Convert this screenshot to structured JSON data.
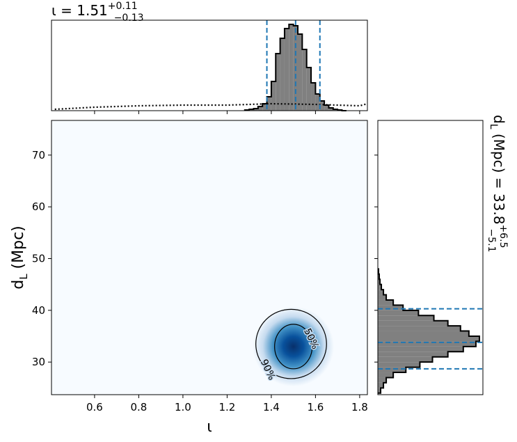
{
  "chart_data": [
    {
      "type": "histogram",
      "orientation": "vertical",
      "title": "ι = 1.51",
      "title_sup": "+0.11",
      "title_sub": "−0.13",
      "bins": [
        1.28,
        1.3,
        1.32,
        1.34,
        1.36,
        1.38,
        1.4,
        1.42,
        1.44,
        1.46,
        1.48,
        1.5,
        1.52,
        1.54,
        1.56,
        1.58,
        1.6,
        1.62,
        1.64,
        1.66,
        1.68,
        1.7,
        1.72,
        1.74
      ],
      "counts": [
        1,
        2,
        3,
        6,
        10,
        20,
        42,
        82,
        104,
        118,
        124,
        122,
        110,
        88,
        62,
        40,
        24,
        14,
        8,
        4,
        2,
        1,
        0
      ],
      "color": "#808080",
      "edgecolor": "#000000",
      "xlim": [
        0.405,
        1.835
      ],
      "ylim": [
        0,
        130
      ],
      "quantiles": [
        1.38,
        1.51,
        1.62
      ],
      "quantile_color": "#1f77b4",
      "prior": {
        "x": [
          0.42,
          0.6,
          0.8,
          1.0,
          1.2,
          1.4,
          1.6,
          1.8,
          1.835
        ],
        "values": [
          2,
          5,
          7,
          8,
          8,
          10,
          9,
          7,
          10
        ]
      }
    },
    {
      "type": "density2d",
      "xlim": [
        0.405,
        1.835
      ],
      "ylim": [
        23.7,
        76.7
      ],
      "xticks": [
        0.6,
        0.8,
        {
          "value": 1.0,
          "label": "1.0"
        },
        1.2,
        1.4,
        1.6,
        1.8
      ],
      "yticks": [
        30,
        40,
        50,
        60,
        70
      ],
      "xlabel": "ι",
      "ylabel": "d",
      "ylabel_sub": "L",
      "ylabel_rest": " (Mpc)",
      "colors": [
        "#f7fbff",
        "#c6dbef",
        "#4292c6",
        "#08519c",
        "#08306b"
      ],
      "contours": [
        {
          "label": "90%",
          "cx": 1.49,
          "cy": 33.5,
          "rx": 0.16,
          "ry": 6.7
        },
        {
          "label": "50%",
          "cx": 1.5,
          "cy": 33.0,
          "rx": 0.085,
          "ry": 4.3
        }
      ]
    },
    {
      "type": "histogram",
      "orientation": "horizontal",
      "title": "d",
      "title_sub1": "L",
      "title_rest": " (Mpc) = 33.8",
      "title_sup": "+6.5",
      "title_sub": "−5.1",
      "bins": [
        24,
        25,
        26,
        27,
        28,
        29,
        30,
        31,
        32,
        33,
        34,
        35,
        36,
        37,
        38,
        39,
        40,
        41,
        42,
        43,
        44,
        45,
        46,
        47,
        48
      ],
      "counts": [
        4,
        8,
        12,
        22,
        40,
        60,
        78,
        100,
        122,
        140,
        145,
        130,
        118,
        100,
        80,
        58,
        36,
        22,
        12,
        8,
        5,
        3,
        2,
        1
      ],
      "color": "#808080",
      "edgecolor": "#000000",
      "xlim": [
        0,
        150
      ],
      "ylim": [
        23.7,
        76.7
      ],
      "quantiles": [
        28.7,
        33.8,
        40.3
      ],
      "quantile_color": "#1f77b4"
    }
  ]
}
